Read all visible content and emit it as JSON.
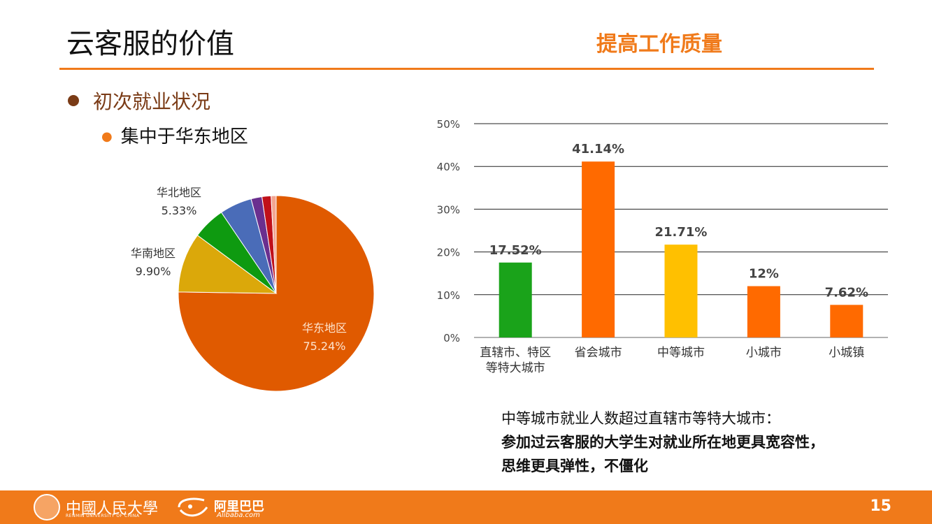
{
  "slide": {
    "title": "云客服的价值",
    "subtitle": "提高工作质量",
    "bullet1": "初次就业状况",
    "bullet2": "集中于华东地区",
    "note_line1": "中等城市就业人数超过直辖市等特大城市：",
    "note_line2": "参加过云客服的大学生对就业所在地更具宽容性，",
    "note_line3": "思维更具弹性，不僵化",
    "page_number": "15"
  },
  "footer": {
    "university_name": "中國人民大學",
    "university_sub": "RENMIN UNIVERSITY OF CHINA",
    "alibaba_name": "阿里巴巴",
    "alibaba_sub": "Alibaba.com",
    "university_logo_icon": "renmin-university-seal-icon",
    "alibaba_logo_icon": "alibaba-smile-icon",
    "bar_color": "#f07a1a"
  },
  "chart_data": [
    {
      "type": "pie",
      "slices": [
        {
          "label": "华东地区",
          "value": 75.24,
          "display": "75.24%",
          "color": "#e05a00"
        },
        {
          "label": "华南地区",
          "value": 9.9,
          "display": "9.90%",
          "color": "#dba80a"
        },
        {
          "label": "",
          "value": 5.4,
          "display": "",
          "color": "#0e9a10"
        },
        {
          "label": "华北地区",
          "value": 5.33,
          "display": "5.33%",
          "color": "#4a6cb8"
        },
        {
          "label": "",
          "value": 1.8,
          "display": "",
          "color": "#6a2f8f"
        },
        {
          "label": "",
          "value": 1.5,
          "display": "",
          "color": "#c0101a"
        },
        {
          "label": "",
          "value": 0.83,
          "display": "",
          "color": "#f2a592"
        }
      ]
    },
    {
      "type": "bar",
      "categories": [
        "直辖市、特区\n等特大城市",
        "省会城市",
        "中等城市",
        "小城市",
        "小城镇"
      ],
      "values": [
        17.52,
        41.14,
        21.71,
        12,
        7.62
      ],
      "data_labels": [
        "17.52%",
        "41.14%",
        "21.71%",
        "12%",
        "7.62%"
      ],
      "colors": [
        "#1aa31a",
        "#ff6a00",
        "#ffc000",
        "#ff6a00",
        "#ff6a00"
      ],
      "ylim": [
        0,
        50
      ],
      "yticks": [
        "0%",
        "10%",
        "20%",
        "30%",
        "40%",
        "50%"
      ],
      "grid": true
    }
  ]
}
